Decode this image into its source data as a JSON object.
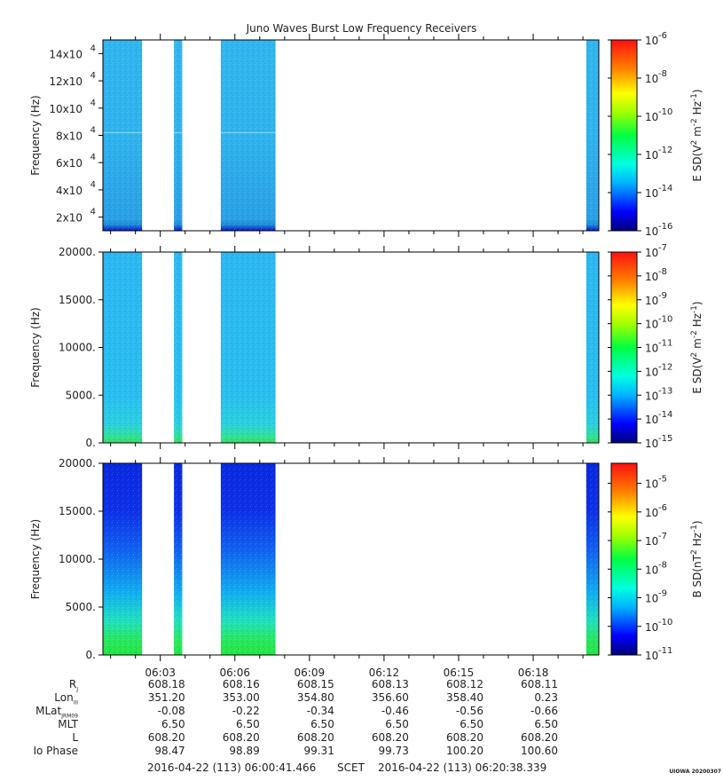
{
  "title": "Juno Waves Burst Low Frequency Receivers",
  "colors": {
    "frame": "#000000",
    "gap": "#ffffff"
  },
  "chart_data": [
    {
      "type": "heatmap",
      "title": "Juno Waves Burst Low Frequency Receivers",
      "ylabel": "Frequency (Hz)",
      "ylim": [
        10000,
        150000
      ],
      "yticks": [
        {
          "v": 20000,
          "m": 2
        },
        {
          "v": 40000,
          "m": 4
        },
        {
          "v": 60000,
          "m": 6
        },
        {
          "v": 80000,
          "m": 8
        },
        {
          "v": 100000,
          "m": 10
        },
        {
          "v": 120000,
          "m": 12
        },
        {
          "v": 140000,
          "m": 14
        }
      ],
      "ytick_base": "x10",
      "ytick_exp": "4",
      "colorbar": {
        "label": "E SD(V",
        "label_full": "E SD(V^2 m^-2 Hz^-1)",
        "scale": "log",
        "range": [
          -16,
          -6
        ],
        "ticks": [
          -6,
          -8,
          -10,
          -12,
          -14,
          -16
        ]
      },
      "palette": "blue-cyan-flat"
    },
    {
      "type": "heatmap",
      "ylabel": "Frequency (Hz)",
      "ylim": [
        0,
        20000
      ],
      "yticks": [
        "0.",
        "5000.",
        "10000.",
        "15000.",
        "20000."
      ],
      "yticks_values": [
        0,
        5000,
        10000,
        15000,
        20000
      ],
      "colorbar": {
        "label": "E SD(V",
        "label_full": "E SD(V^2 m^-2 Hz^-1)",
        "scale": "log",
        "range": [
          -15,
          -7
        ],
        "ticks": [
          -7,
          -8,
          -9,
          -10,
          -11,
          -12,
          -13,
          -14,
          -15
        ]
      },
      "palette": "cyan-green-bottom"
    },
    {
      "type": "heatmap",
      "ylabel": "Frequency (Hz)",
      "ylim": [
        0,
        20000
      ],
      "yticks": [
        "0.",
        "5000.",
        "10000.",
        "15000.",
        "20000."
      ],
      "yticks_values": [
        0,
        5000,
        10000,
        15000,
        20000
      ],
      "colorbar": {
        "label": "B SD(nT",
        "label_full": "B SD(nT^2 Hz^-1)",
        "scale": "log",
        "range": [
          -11,
          -4.3
        ],
        "ticks": [
          -5,
          -6,
          -7,
          -8,
          -9,
          -10,
          -11
        ]
      },
      "palette": "blue-to-green"
    }
  ],
  "time_axis": {
    "start_sec": 41.466,
    "end_sec": 1238.339,
    "tick_labels": [
      "06:03",
      "06:06",
      "06:09",
      "06:12",
      "06:15",
      "06:18"
    ],
    "tick_seconds": [
      180,
      360,
      540,
      720,
      900,
      1080
    ],
    "minor_seconds": [
      60,
      120,
      240,
      300,
      420,
      480,
      600,
      660,
      780,
      840,
      960,
      1020,
      1140,
      1200
    ],
    "data_intervals_sec": [
      [
        41.466,
        136
      ],
      [
        213,
        233
      ],
      [
        326,
        458
      ],
      [
        1208,
        1238.339
      ]
    ]
  },
  "ephemeris": {
    "rows": [
      {
        "label": "R",
        "sub": "J",
        "values": [
          "608.18",
          "608.16",
          "608.15",
          "608.13",
          "608.12",
          "608.11"
        ]
      },
      {
        "label": "Lon",
        "sub": "III",
        "values": [
          "351.20",
          "353.00",
          "354.80",
          "356.60",
          "358.40",
          "0.23"
        ]
      },
      {
        "label": "MLat",
        "sub": "JRM09",
        "values": [
          "-0.08",
          "-0.22",
          "-0.34",
          "-0.46",
          "-0.56",
          "-0.66"
        ]
      },
      {
        "label": "MLT",
        "sub": "",
        "values": [
          "6.50",
          "6.50",
          "6.50",
          "6.50",
          "6.50",
          "6.50"
        ]
      },
      {
        "label": "L",
        "sub": "",
        "values": [
          "608.20",
          "608.20",
          "608.20",
          "608.20",
          "608.20",
          "608.20"
        ]
      },
      {
        "label": "Io Phase",
        "sub": "",
        "values": [
          "98.47",
          "98.89",
          "99.31",
          "99.73",
          "100.20",
          "100.60"
        ]
      }
    ]
  },
  "footer": {
    "start": "2016-04-22 (113) 06:00:41.466",
    "scet": "SCET",
    "end": "2016-04-22 (113) 06:20:38.339"
  },
  "credit": "UIOWA 20200307"
}
